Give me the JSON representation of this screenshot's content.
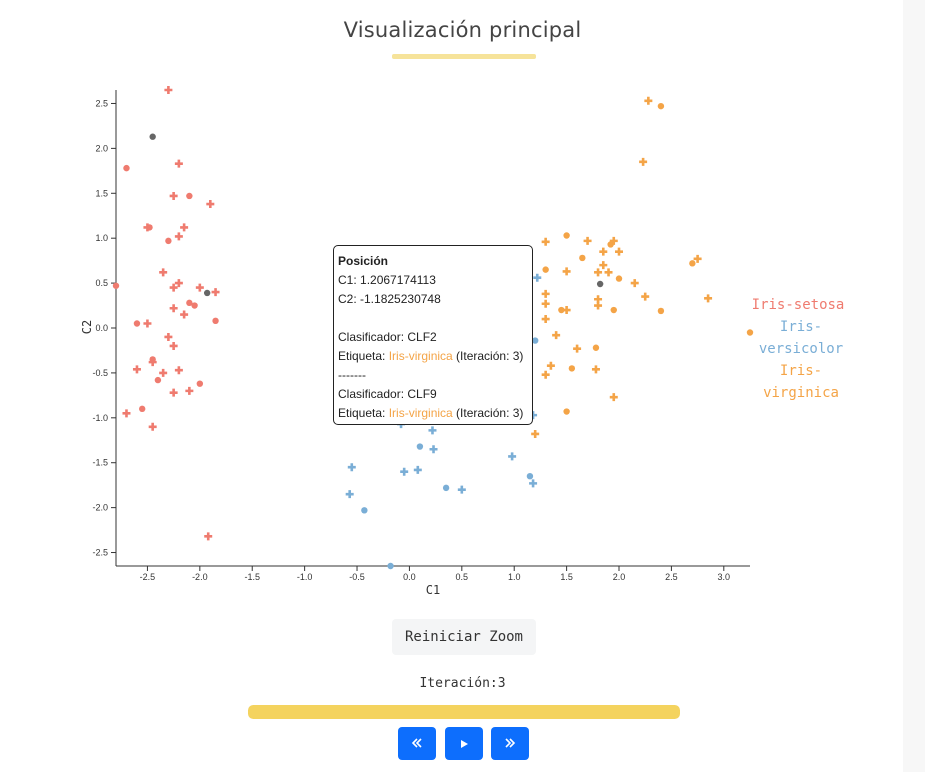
{
  "header": {
    "title": "Visualización principal"
  },
  "chart_data": {
    "type": "scatter",
    "title": "",
    "xlabel": "C1",
    "ylabel": "C2",
    "xlim": [
      -2.8,
      3.25
    ],
    "ylim": [
      -2.65,
      2.65
    ],
    "xticks": [
      "-2.5",
      "-2.0",
      "-1.5",
      "-1.0",
      "-0.5",
      "0.0",
      "0.5",
      "1.0",
      "1.5",
      "2.0",
      "2.5",
      "3.0"
    ],
    "yticks": [
      "-2.5",
      "-2.0",
      "-1.5",
      "-1.0",
      "-0.5",
      "0.0",
      "0.5",
      "1.0",
      "1.5",
      "2.0",
      "2.5"
    ],
    "legend_placement": "right",
    "marker_note": "circle and plus markers",
    "series": [
      {
        "name": "Iris-setosa",
        "color": "#ef7b6f",
        "points": [
          [
            -2.7,
            1.78
          ],
          [
            -2.2,
            1.83
          ],
          [
            -2.5,
            1.12
          ],
          [
            -2.1,
            1.47
          ],
          [
            -1.9,
            1.38
          ],
          [
            -2.25,
            1.47
          ],
          [
            -2.48,
            1.12
          ],
          [
            -2.35,
            0.62
          ],
          [
            -2.2,
            1.02
          ],
          [
            -2.3,
            0.97
          ],
          [
            -2.2,
            0.5
          ],
          [
            -2.25,
            0.45
          ],
          [
            -2.1,
            0.28
          ],
          [
            -2.0,
            0.45
          ],
          [
            -1.85,
            0.4
          ],
          [
            -2.6,
            0.05
          ],
          [
            -2.5,
            0.05
          ],
          [
            -2.6,
            -0.46
          ],
          [
            -2.45,
            -0.35
          ],
          [
            -2.2,
            -0.47
          ],
          [
            -2.1,
            -0.7
          ],
          [
            -2.0,
            -0.62
          ],
          [
            -2.25,
            -0.72
          ],
          [
            -2.45,
            -1.1
          ],
          [
            -2.55,
            -0.9
          ],
          [
            -2.7,
            -0.95
          ],
          [
            -1.92,
            -2.32
          ],
          [
            -1.85,
            0.08
          ],
          [
            -2.3,
            2.65
          ],
          [
            -2.15,
            0.15
          ],
          [
            -2.4,
            -0.58
          ],
          [
            -2.25,
            0.22
          ],
          [
            -2.25,
            -0.2
          ],
          [
            -2.8,
            0.47
          ],
          [
            -2.15,
            1.12
          ],
          [
            -2.3,
            -0.1
          ],
          [
            -2.05,
            0.25
          ],
          [
            -2.45,
            -0.38
          ],
          [
            -2.35,
            -0.5
          ]
        ]
      },
      {
        "name": "Iris-versicolor",
        "color": "#7aaed6",
        "points": [
          [
            -0.55,
            -1.55
          ],
          [
            -0.57,
            -1.85
          ],
          [
            -0.43,
            -2.03
          ],
          [
            -0.05,
            -1.6
          ],
          [
            0.08,
            -1.58
          ],
          [
            0.1,
            -1.32
          ],
          [
            0.23,
            -1.35
          ],
          [
            0.22,
            -1.14
          ],
          [
            0.35,
            -1.78
          ],
          [
            0.5,
            -1.8
          ],
          [
            0.98,
            -1.43
          ],
          [
            1.15,
            -1.65
          ],
          [
            1.18,
            -1.73
          ],
          [
            -0.08,
            -1.07
          ],
          [
            1.2,
            -0.14
          ],
          [
            1.22,
            0.56
          ],
          [
            1.18,
            -0.97
          ],
          [
            -0.18,
            -2.65
          ]
        ]
      },
      {
        "name": "Iris-virginica",
        "color": "#f4a447",
        "points": [
          [
            2.28,
            2.53
          ],
          [
            2.4,
            2.47
          ],
          [
            2.23,
            1.85
          ],
          [
            1.3,
            0.96
          ],
          [
            1.5,
            1.03
          ],
          [
            1.7,
            0.97
          ],
          [
            1.85,
            0.85
          ],
          [
            1.92,
            0.93
          ],
          [
            1.95,
            0.97
          ],
          [
            2.0,
            0.85
          ],
          [
            1.65,
            0.78
          ],
          [
            1.85,
            0.7
          ],
          [
            1.5,
            0.63
          ],
          [
            1.3,
            0.65
          ],
          [
            1.8,
            0.62
          ],
          [
            1.9,
            0.62
          ],
          [
            2.0,
            0.55
          ],
          [
            2.15,
            0.5
          ],
          [
            2.25,
            0.35
          ],
          [
            2.7,
            0.72
          ],
          [
            2.75,
            0.77
          ],
          [
            2.85,
            0.33
          ],
          [
            2.4,
            0.19
          ],
          [
            1.8,
            0.32
          ],
          [
            1.8,
            0.25
          ],
          [
            1.95,
            0.2
          ],
          [
            1.3,
            0.38
          ],
          [
            1.3,
            0.27
          ],
          [
            1.45,
            0.2
          ],
          [
            1.5,
            0.2
          ],
          [
            1.4,
            -0.08
          ],
          [
            1.78,
            -0.22
          ],
          [
            1.78,
            -0.46
          ],
          [
            1.6,
            -0.23
          ],
          [
            1.55,
            -0.45
          ],
          [
            1.35,
            -0.42
          ],
          [
            1.3,
            -0.52
          ],
          [
            1.5,
            -0.93
          ],
          [
            1.95,
            -0.77
          ],
          [
            1.2,
            -1.18
          ],
          [
            3.25,
            -0.05
          ],
          [
            1.3,
            0.1
          ]
        ]
      },
      {
        "name": "",
        "color": "#666666",
        "points": [
          [
            -2.45,
            2.13
          ],
          [
            -1.93,
            0.39
          ],
          [
            1.82,
            0.49
          ]
        ]
      }
    ]
  },
  "legend": [
    {
      "text": "Iris-setosa",
      "color": "#ef7b6f"
    },
    {
      "text": "Iris-\nversicolor",
      "color": "#7aaed6"
    },
    {
      "text": "Iris-\nvirginica",
      "color": "#f4a447"
    }
  ],
  "tooltip": {
    "title": "Posición",
    "c1_label": "C1: ",
    "c1_value": "1.2067174113",
    "c2_label": "C2: ",
    "c2_value": "-1.1825230748",
    "entries": [
      {
        "clasificador": "Clasificador: CLF2",
        "etiqueta_label": "Etiqueta: ",
        "etiqueta_value": "Iris-virginica",
        "iteracion": " (Iteración: 3)"
      },
      {
        "clasificador": "Clasificador: CLF9",
        "etiqueta_label": "Etiqueta: ",
        "etiqueta_value": "Iris-virginica",
        "iteracion": " (Iteración: 3)"
      }
    ],
    "separator": "-------"
  },
  "controls": {
    "reset_label": "Reiniciar Zoom",
    "iteration_label": "Iteración:3",
    "progress_fraction": 1.0,
    "prev_icon": "double-chevron-left-icon",
    "play_icon": "play-icon",
    "next_icon": "double-chevron-right-icon"
  }
}
